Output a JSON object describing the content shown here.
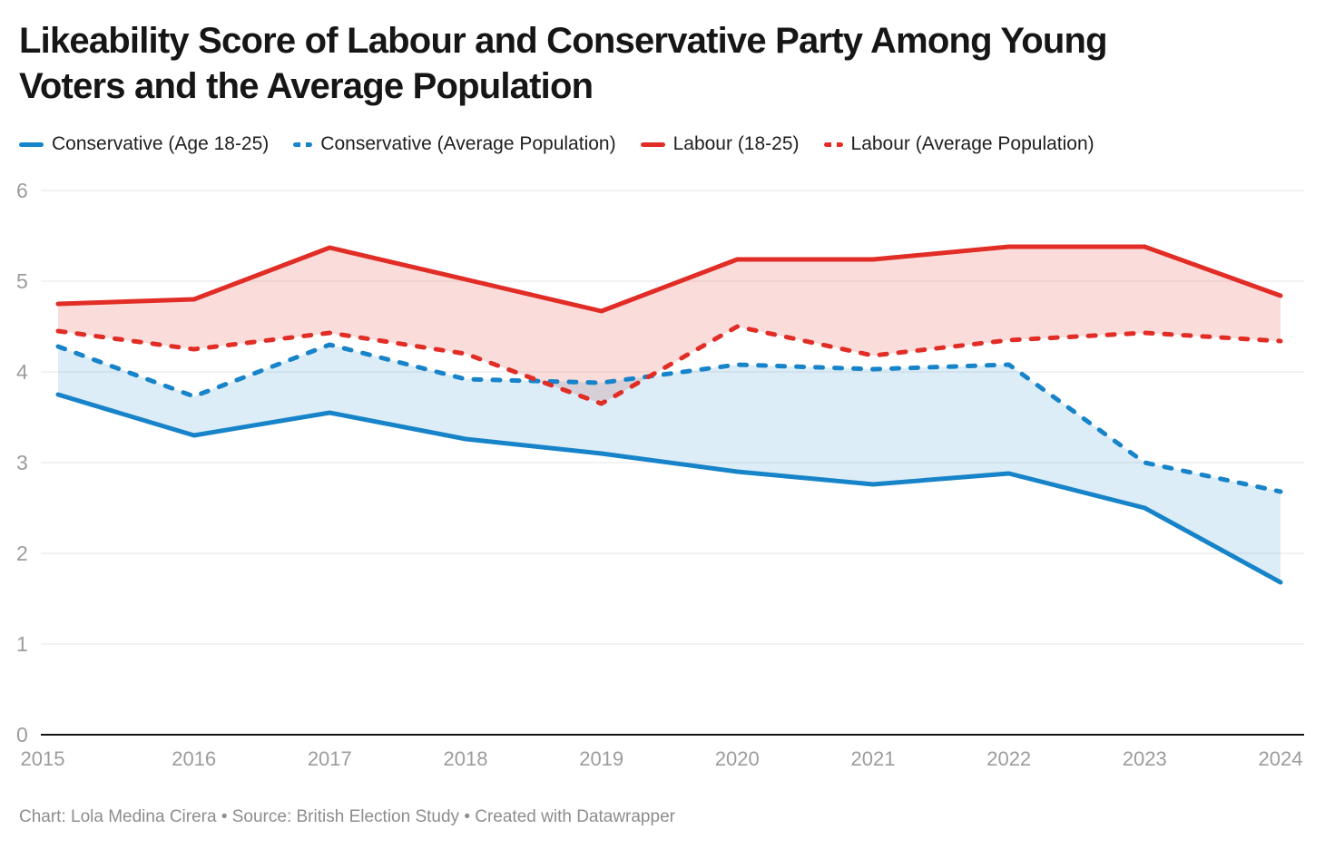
{
  "title_lines": [
    "Likeability Score of Labour and Conservative Party Among Young",
    "Voters and the Average Population"
  ],
  "footer": "Chart: Lola Medina Cirera • Source: British Election Study • Created with Datawrapper",
  "colors": {
    "conservative": "#1783c9",
    "labour": "#e12d26",
    "grid": "#e6e6e6",
    "axis": "#141414",
    "tick_label": "#9c9c9c",
    "title_text": "#161616",
    "legend_text": "#202020",
    "footer_text": "#8d8d8d",
    "background": "#ffffff"
  },
  "chart_data": {
    "type": "line",
    "title": "Likeability Score of Labour and Conservative Party Among Young Voters and the Average Population",
    "x": [
      2015,
      2016,
      2017,
      2018,
      2019,
      2020,
      2021,
      2022,
      2023,
      2024
    ],
    "ylim": [
      0,
      6
    ],
    "yticks": [
      0,
      1,
      2,
      3,
      4,
      5,
      6
    ],
    "grid": true,
    "legend_position": "top",
    "series": [
      {
        "name": "Conservative (Age 18-25)",
        "color_key": "conservative",
        "dash": false,
        "values": [
          3.75,
          3.3,
          3.55,
          3.26,
          3.1,
          2.9,
          2.76,
          2.88,
          2.5,
          1.68
        ]
      },
      {
        "name": "Conservative (Average Population)",
        "color_key": "conservative",
        "dash": true,
        "values": [
          4.28,
          3.73,
          4.3,
          3.92,
          3.88,
          4.08,
          4.03,
          4.08,
          3.0,
          2.68
        ]
      },
      {
        "name": "Labour (18-25)",
        "color_key": "labour",
        "dash": false,
        "values": [
          4.75,
          4.8,
          5.37,
          5.02,
          4.67,
          5.24,
          5.24,
          5.38,
          5.38,
          4.84
        ]
      },
      {
        "name": "Labour (Average Population)",
        "color_key": "labour",
        "dash": true,
        "values": [
          4.45,
          4.25,
          4.43,
          4.2,
          3.65,
          4.5,
          4.18,
          4.35,
          4.43,
          4.34
        ]
      }
    ],
    "areas": [
      {
        "between": [
          "Labour (18-25)",
          "Labour (Average Population)"
        ],
        "upper": 2,
        "lower": 3,
        "color_key": "labour",
        "opacity": 0.17
      },
      {
        "between": [
          "Conservative (Average Population)",
          "Conservative (Age 18-25)"
        ],
        "upper": 1,
        "lower": 0,
        "color_key": "conservative",
        "opacity": 0.15
      }
    ]
  }
}
